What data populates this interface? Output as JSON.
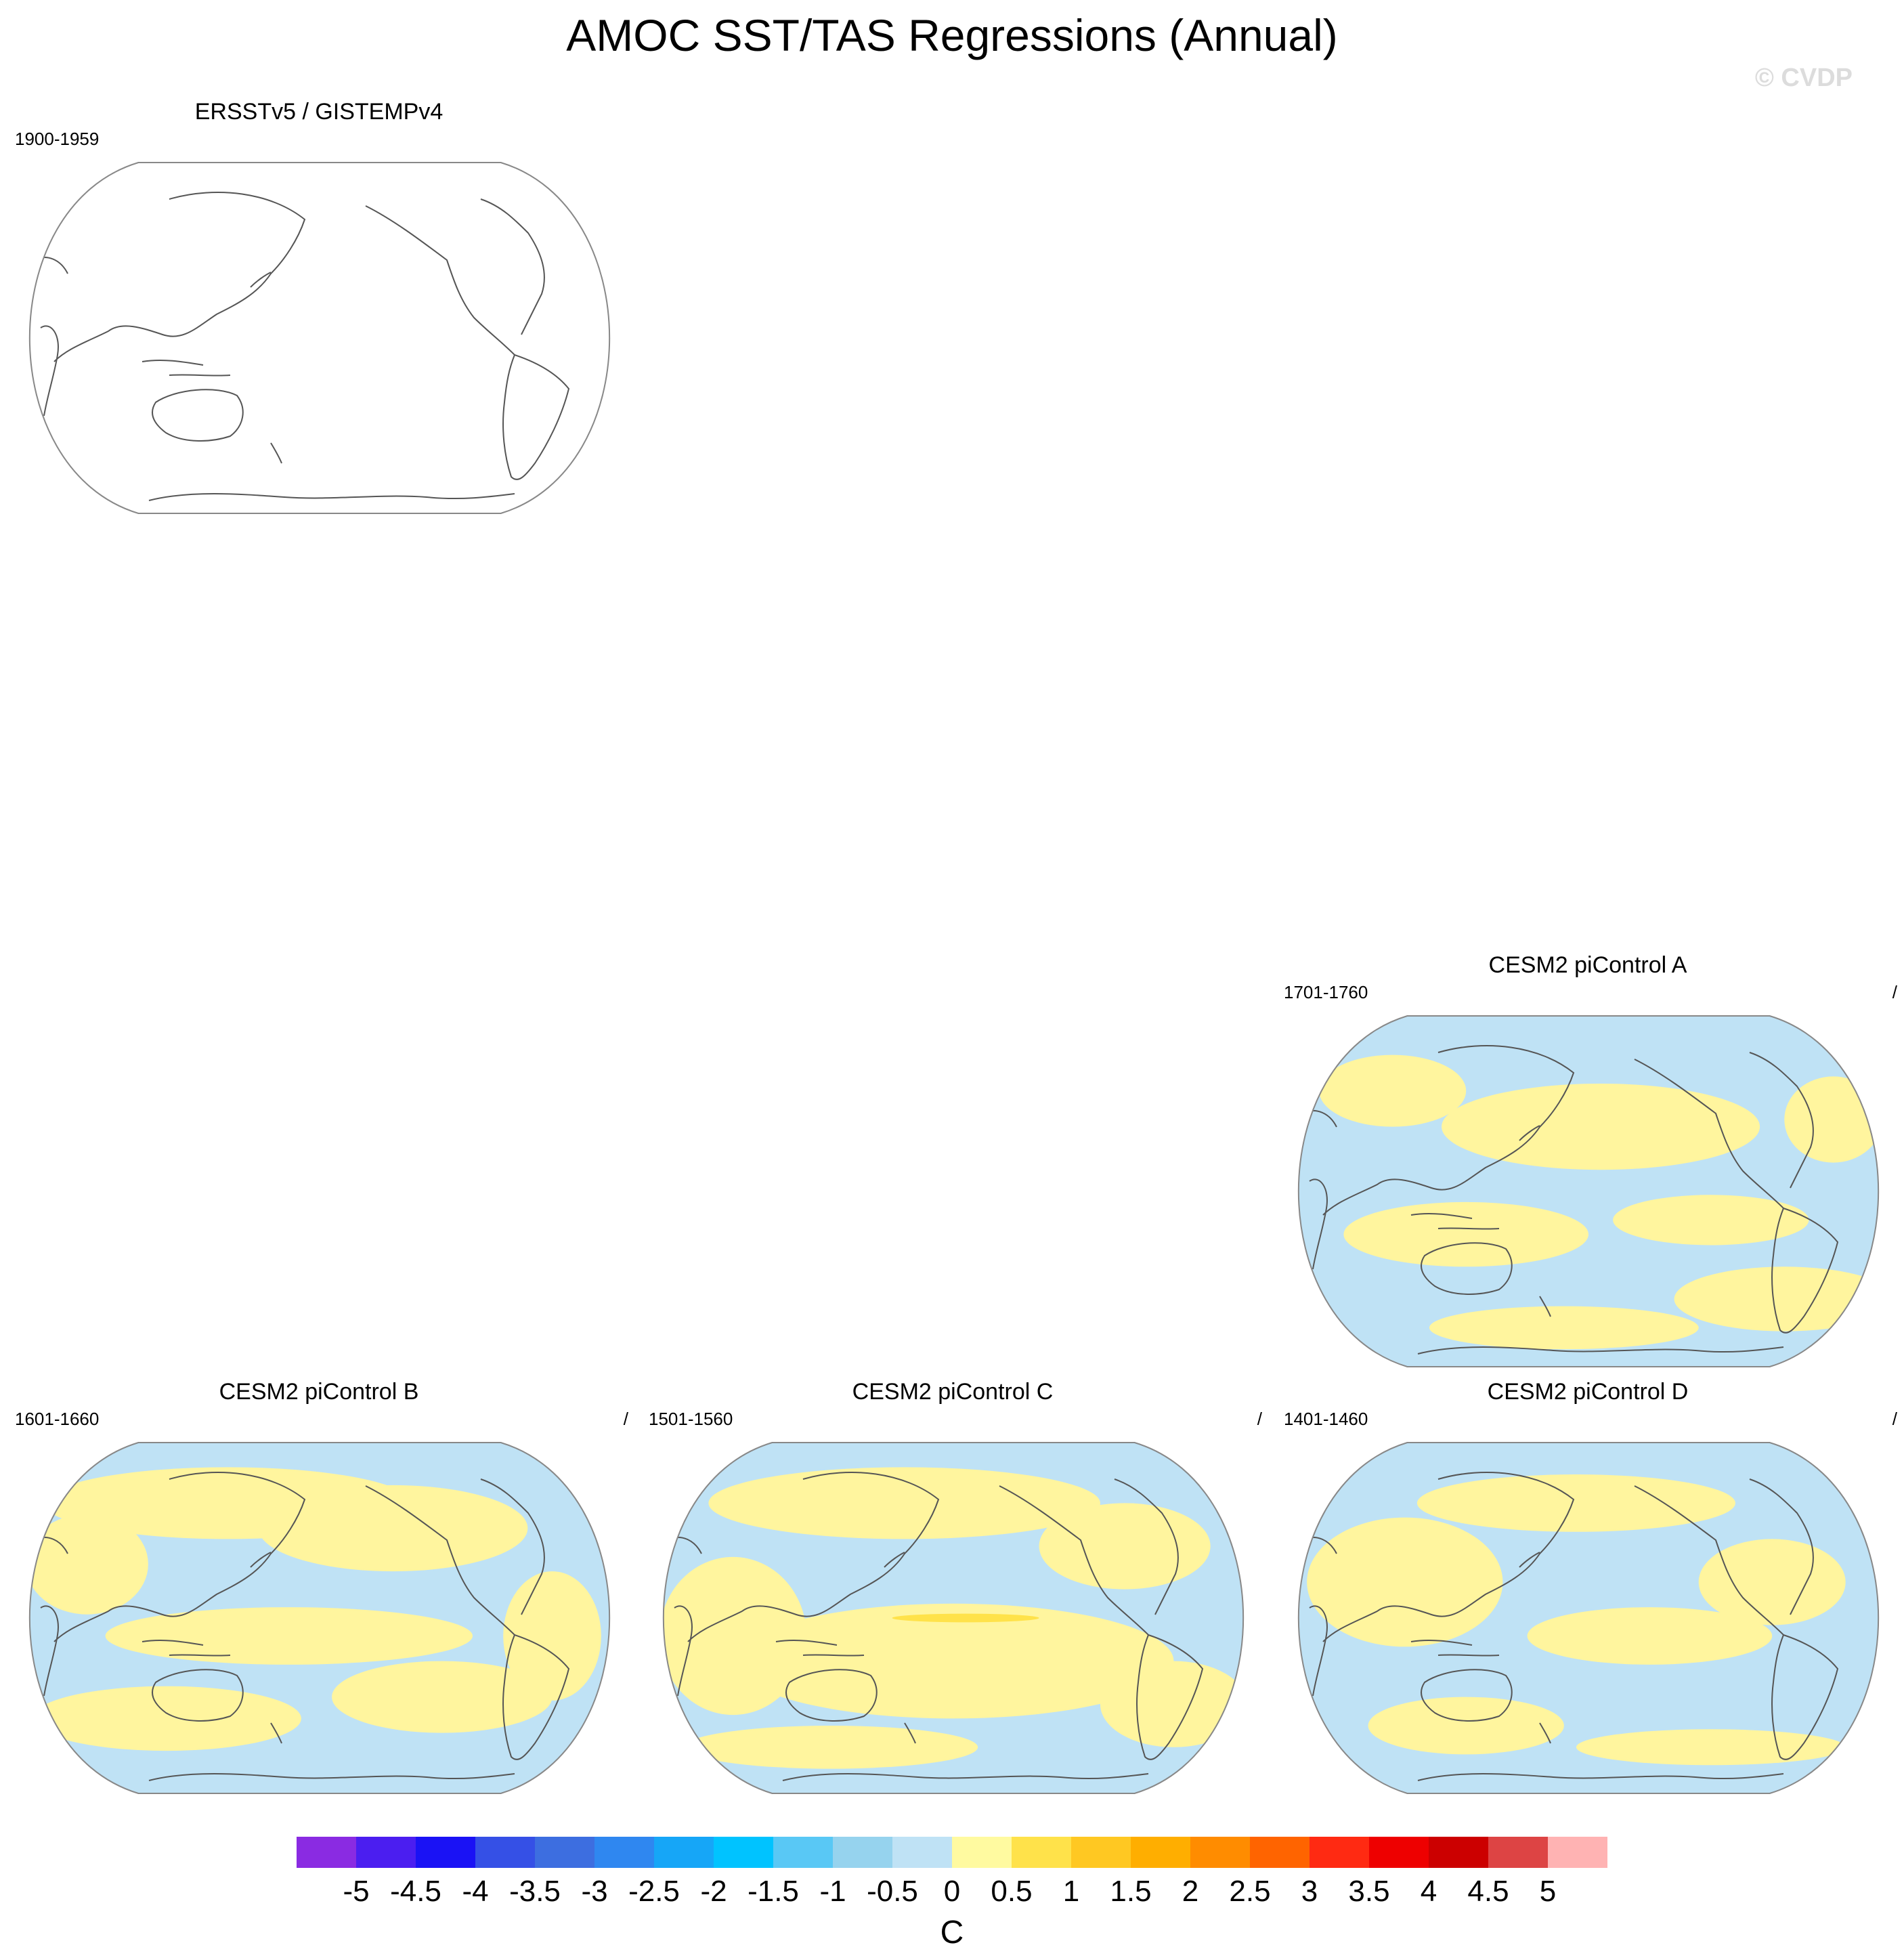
{
  "title": "AMOC SST/TAS Regressions (Annual)",
  "watermark": "© CVDP",
  "panels": [
    {
      "title": "ERSSTv5 / GISTEMPv4",
      "period": "1900-1959",
      "slash": "",
      "fill": false
    },
    {
      "title": "CESM2 piControl A",
      "period": "1701-1760",
      "slash": "/",
      "fill": true
    },
    {
      "title": "CESM2 piControl B",
      "period": "1601-1660",
      "slash": "/",
      "fill": true
    },
    {
      "title": "CESM2 piControl C",
      "period": "1501-1560",
      "slash": "/",
      "fill": true
    },
    {
      "title": "CESM2 piControl D",
      "period": "1401-1460",
      "slash": "/",
      "fill": true
    }
  ],
  "colorbar": {
    "labels": [
      "-5",
      "-4.5",
      "-4",
      "-3.5",
      "-3",
      "-2.5",
      "-2",
      "-1.5",
      "-1",
      "-0.5",
      "0",
      "0.5",
      "1",
      "1.5",
      "2",
      "2.5",
      "3",
      "3.5",
      "4",
      "4.5",
      "5"
    ],
    "colors": [
      "#8a2be2",
      "#4b1ef0",
      "#1a12f5",
      "#3550e6",
      "#3d6ee0",
      "#2f87f0",
      "#16a6f7",
      "#00c3ff",
      "#59c8f5",
      "#96d3ee",
      "#bfe2f5",
      "#fffaa0",
      "#ffe24a",
      "#ffc822",
      "#ffae00",
      "#ff8c00",
      "#ff6400",
      "#ff2a12",
      "#ee0000",
      "#cc0000",
      "#dd4444",
      "#ffb3b3"
    ],
    "units": "C"
  },
  "colors": {
    "positive_fill": "#fff59e",
    "negative_fill": "#bfe2f5",
    "warm_core": "#ffe24a",
    "coast": "#555555",
    "border": "#888888"
  }
}
